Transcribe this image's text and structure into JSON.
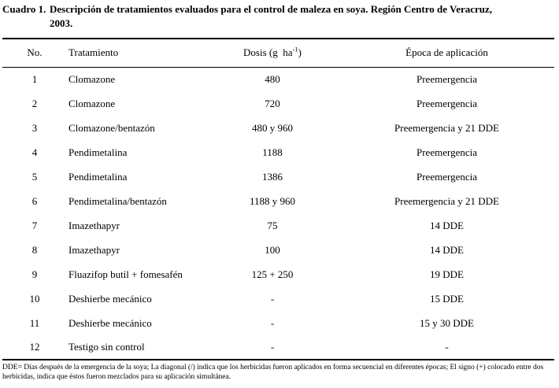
{
  "document": {
    "title": {
      "label": "Cuadro 1.",
      "line1": "Descripción de tratamientos evaluados para el control de maleza en soya. Región Centro de Veracruz,",
      "line2": "2003."
    },
    "table": {
      "headers": {
        "no": "No.",
        "treatment": "Tratamiento",
        "dose_prefix": "Dosis (g  ha",
        "dose_sup": "-1",
        "dose_suffix": ")",
        "epoch": "Época de aplicación"
      },
      "rows": [
        {
          "no": "1",
          "treatment": "Clomazone",
          "dose": "480",
          "epoch": "Preemergencia"
        },
        {
          "no": "2",
          "treatment": "Clomazone",
          "dose": "720",
          "epoch": "Preemergencia"
        },
        {
          "no": "3",
          "treatment": "Clomazone/bentazón",
          "dose": "480 y 960",
          "epoch": "Preemergencia y 21 DDE"
        },
        {
          "no": "4",
          "treatment": "Pendimetalina",
          "dose": "1188",
          "epoch": "Preemergencia"
        },
        {
          "no": "5",
          "treatment": "Pendimetalina",
          "dose": "1386",
          "epoch": "Preemergencia"
        },
        {
          "no": "6",
          "treatment": "Pendimetalina/bentazón",
          "dose": "1188 y 960",
          "epoch": "Preemergencia y 21 DDE"
        },
        {
          "no": "7",
          "treatment": "Imazethapyr",
          "dose": "75",
          "epoch": "14 DDE"
        },
        {
          "no": "8",
          "treatment": "Imazethapyr",
          "dose": "100",
          "epoch": "14 DDE"
        },
        {
          "no": "9",
          "treatment": "Fluazifop butil + fomesafén",
          "dose": "125 + 250",
          "epoch": "19 DDE"
        },
        {
          "no": "10",
          "treatment": "Deshierbe mecánico",
          "dose": "-",
          "epoch": "15 DDE"
        },
        {
          "no": "11",
          "treatment": "Deshierbe mecánico",
          "dose": "-",
          "epoch": "15 y 30 DDE"
        },
        {
          "no": "12",
          "treatment": "Testigo sin control",
          "dose": "-",
          "epoch": "-"
        }
      ]
    },
    "footnote": "DDE= Días después de la emergencia de la soya; La diagonal (/) indica que los herbicidas fueron aplicados en forma secuencial en diferentes épocas; El signo (+) colocado entre dos herbicidas, indica que éstos fueron mezclados para su aplicación simultánea."
  }
}
